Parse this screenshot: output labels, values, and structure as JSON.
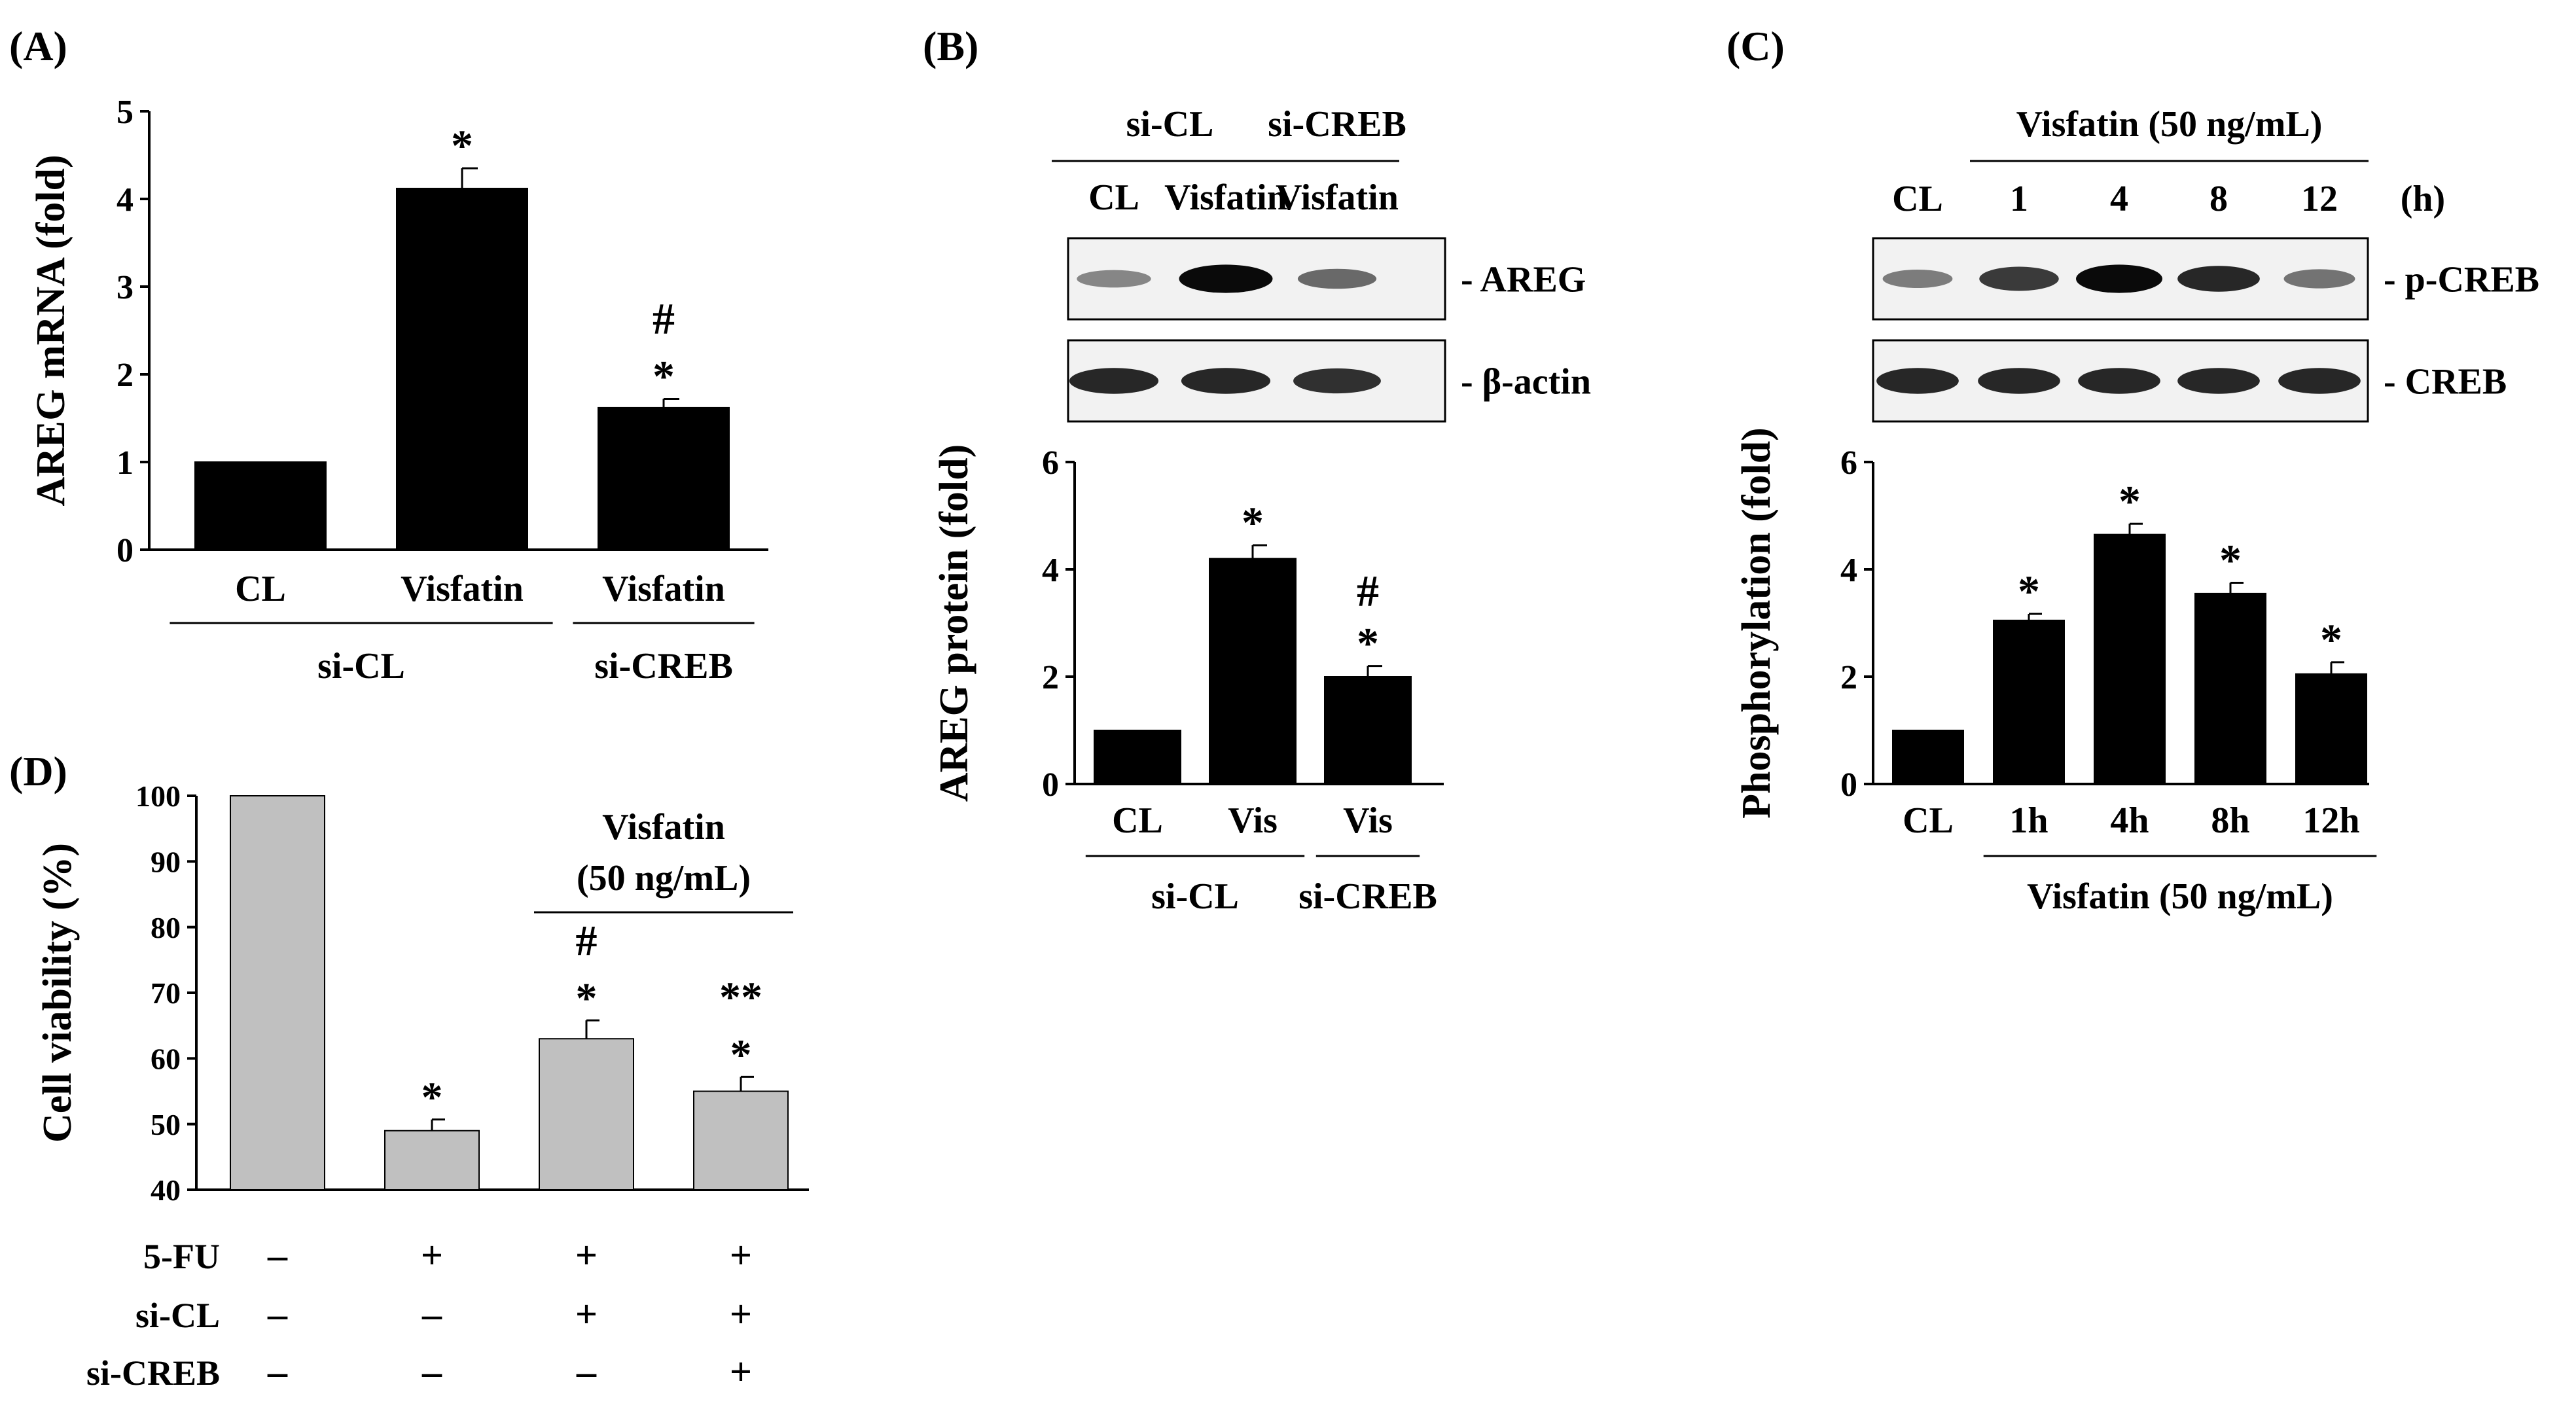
{
  "panels": {
    "A": {
      "label": "(A)",
      "chart_data": {
        "type": "bar",
        "ylabel": "AREG mRNA (fold)",
        "ylim": [
          0,
          5
        ],
        "yticks": [
          "0",
          "1",
          "2",
          "3",
          "4",
          "5"
        ],
        "categories": [
          "CL",
          "Visfatin",
          "Visfatin"
        ],
        "values": [
          1.0,
          4.12,
          1.62
        ],
        "errors": [
          0,
          0.23,
          0.1
        ],
        "annotations": [
          [
            "",
            ""
          ],
          [
            "*",
            ""
          ],
          [
            "*",
            "#"
          ]
        ],
        "groups": [
          {
            "label": "si-CL",
            "span": [
              0,
              1
            ]
          },
          {
            "label": "si-CREB",
            "span": [
              2,
              2
            ]
          }
        ],
        "bar_color": "#000000"
      }
    },
    "B": {
      "label": "(B)",
      "blot": {
        "header_groups": [
          {
            "label": "si-CL",
            "span": [
              0,
              1
            ]
          },
          {
            "label": "si-CREB",
            "span": [
              2,
              2
            ]
          }
        ],
        "lane_labels": [
          "CL",
          "Visfatin",
          "Visfatin"
        ],
        "bands": [
          {
            "name": "- AREG",
            "intensity": [
              0.35,
              1.0,
              0.5
            ]
          },
          {
            "name": "- β-actin",
            "intensity": [
              0.85,
              0.85,
              0.8
            ]
          }
        ]
      },
      "chart_data": {
        "type": "bar",
        "ylabel": "AREG protein (fold)",
        "ylim": [
          0,
          6
        ],
        "yticks": [
          "0",
          "2",
          "4",
          "6"
        ],
        "categories": [
          "CL",
          "Vis",
          "Vis"
        ],
        "values": [
          1.0,
          4.2,
          2.0
        ],
        "errors": [
          0,
          0.25,
          0.2
        ],
        "annotations": [
          [
            "",
            ""
          ],
          [
            "*",
            ""
          ],
          [
            "*",
            "#"
          ]
        ],
        "groups": [
          {
            "label": "si-CL",
            "span": [
              0,
              1
            ]
          },
          {
            "label": "si-CREB",
            "span": [
              2,
              2
            ]
          }
        ],
        "bar_color": "#000000"
      }
    },
    "C": {
      "label": "(C)",
      "blot": {
        "header_groups": [
          {
            "label": "Visfatin (50 ng/mL)",
            "span": [
              1,
              4
            ]
          }
        ],
        "lane_labels": [
          "CL",
          "1",
          "4",
          "8",
          "12"
        ],
        "unit_label": "(h)",
        "bands": [
          {
            "name": "- p-CREB",
            "intensity": [
              0.4,
              0.75,
              1.0,
              0.85,
              0.45
            ]
          },
          {
            "name": "- CREB",
            "intensity": [
              0.85,
              0.85,
              0.85,
              0.85,
              0.85
            ]
          }
        ]
      },
      "chart_data": {
        "type": "bar",
        "ylabel": "Phosphorylation (fold)",
        "ylim": [
          0,
          6
        ],
        "yticks": [
          "0",
          "2",
          "4",
          "6"
        ],
        "categories": [
          "CL",
          "1h",
          "4h",
          "8h",
          "12h"
        ],
        "values": [
          1.0,
          3.05,
          4.65,
          3.55,
          2.05
        ],
        "errors": [
          0,
          0.12,
          0.2,
          0.2,
          0.22
        ],
        "annotations": [
          [
            "",
            ""
          ],
          [
            "*",
            ""
          ],
          [
            "*",
            ""
          ],
          [
            "*",
            ""
          ],
          [
            "*",
            ""
          ]
        ],
        "groups": [
          {
            "label": "Visfatin (50 ng/mL)",
            "span": [
              1,
              4
            ]
          }
        ],
        "bar_color": "#000000"
      }
    },
    "D": {
      "label": "(D)",
      "chart_data": {
        "type": "bar",
        "ylabel": "Cell viability (%)",
        "ylim": [
          40,
          100
        ],
        "yticks": [
          "40",
          "50",
          "60",
          "70",
          "80",
          "90",
          "100"
        ],
        "categories": [
          "",
          "",
          "",
          ""
        ],
        "values": [
          100,
          49,
          63,
          55
        ],
        "errors": [
          0,
          1.7,
          2.8,
          2.2
        ],
        "annotations": [
          [
            "",
            ""
          ],
          [
            "*",
            ""
          ],
          [
            "*",
            "#"
          ],
          [
            "*",
            "**"
          ]
        ],
        "top_group": {
          "line1": "Visfatin",
          "line2": "(50 ng/mL)",
          "span": [
            2,
            3
          ]
        },
        "treatment_table": [
          {
            "label": "5-FU",
            "values": [
              "–",
              "+",
              "+",
              "+"
            ]
          },
          {
            "label": "si-CL",
            "values": [
              "–",
              "–",
              "+",
              "+"
            ]
          },
          {
            "label": "si-CREB",
            "values": [
              "–",
              "–",
              "–",
              "+"
            ]
          }
        ],
        "bar_color": "#c0c0c0"
      }
    }
  }
}
